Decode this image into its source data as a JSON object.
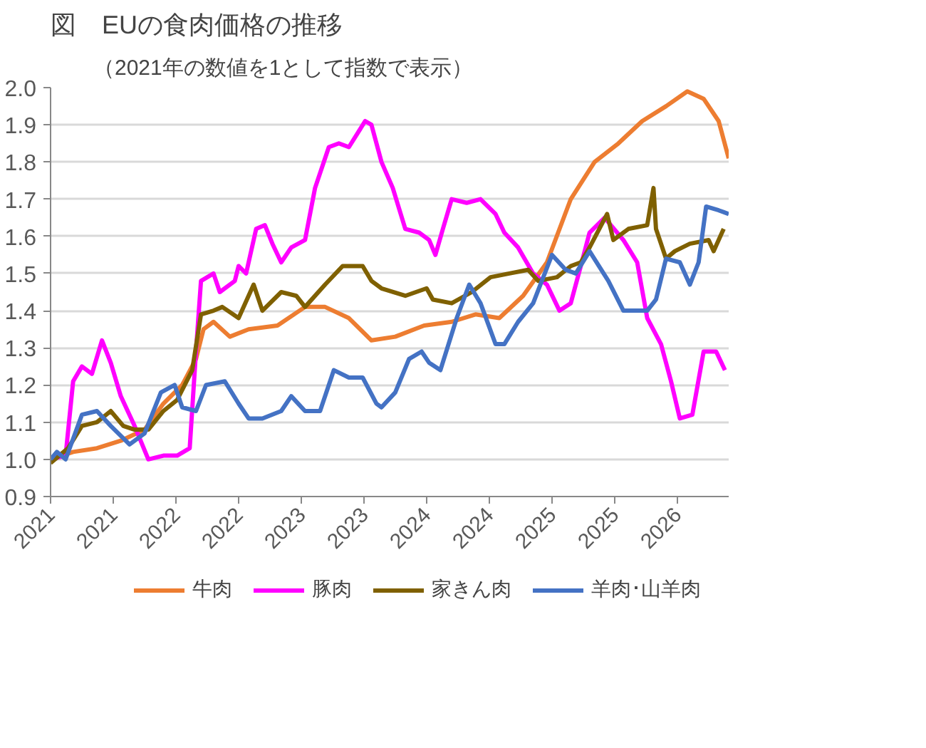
{
  "chart_data": {
    "type": "line",
    "title": "図　EUの食肉価格の推移",
    "subtitle": "（2021年の数値を1として指数で表示）",
    "xlim": [
      2021,
      2026.41
    ],
    "ylim": [
      0.9,
      2.0
    ],
    "xticks": [
      {
        "value": 2021,
        "label": "2021"
      },
      {
        "value": 2021.5,
        "label": "2021"
      },
      {
        "value": 2022,
        "label": "2022"
      },
      {
        "value": 2022.5,
        "label": "2022"
      },
      {
        "value": 2023,
        "label": "2023"
      },
      {
        "value": 2023.5,
        "label": "2023"
      },
      {
        "value": 2024,
        "label": "2024"
      },
      {
        "value": 2024.5,
        "label": "2024"
      },
      {
        "value": 2025,
        "label": "2025"
      },
      {
        "value": 2025.5,
        "label": "2025"
      },
      {
        "value": 2026,
        "label": "2026"
      }
    ],
    "yticks": [
      {
        "value": 0.9,
        "label": "0.9"
      },
      {
        "value": 1.0,
        "label": "1.0"
      },
      {
        "value": 1.1,
        "label": "1.1"
      },
      {
        "value": 1.2,
        "label": "1.2"
      },
      {
        "value": 1.3,
        "label": "1.3"
      },
      {
        "value": 1.4,
        "label": "1.4"
      },
      {
        "value": 1.5,
        "label": "1.5"
      },
      {
        "value": 1.6,
        "label": "1.6"
      },
      {
        "value": 1.7,
        "label": "1.7"
      },
      {
        "value": 1.8,
        "label": "1.8"
      },
      {
        "value": 1.9,
        "label": "1.9"
      },
      {
        "value": 2.0,
        "label": "2.0"
      }
    ],
    "grid": "y",
    "legend": "bottom",
    "series": [
      {
        "name": "牛肉",
        "color": "#ed7d31",
        "x": [
          2021.0,
          2021.18,
          2021.37,
          2021.56,
          2021.75,
          2021.9,
          2022.05,
          2022.16,
          2022.22,
          2022.3,
          2022.43,
          2022.58,
          2022.81,
          2023.03,
          2023.19,
          2023.38,
          2023.56,
          2023.75,
          2023.98,
          2024.2,
          2024.39,
          2024.58,
          2024.77,
          2024.96,
          2025.15,
          2025.34,
          2025.53,
          2025.72,
          2025.91,
          2026.08,
          2026.21,
          2026.33,
          2026.41
        ],
        "values": [
          1.0,
          1.02,
          1.03,
          1.05,
          1.08,
          1.15,
          1.2,
          1.27,
          1.35,
          1.37,
          1.33,
          1.35,
          1.36,
          1.41,
          1.41,
          1.38,
          1.32,
          1.33,
          1.36,
          1.37,
          1.39,
          1.38,
          1.44,
          1.53,
          1.7,
          1.8,
          1.85,
          1.91,
          1.95,
          1.99,
          1.97,
          1.91,
          1.81
        ]
      },
      {
        "name": "豚肉",
        "color": "#ff00ff",
        "x": [
          2021.0,
          2021.12,
          2021.18,
          2021.25,
          2021.33,
          2021.41,
          2021.48,
          2021.56,
          2021.67,
          2021.78,
          2021.9,
          2022.01,
          2022.11,
          2022.16,
          2022.2,
          2022.3,
          2022.35,
          2022.47,
          2022.5,
          2022.56,
          2022.64,
          2022.71,
          2022.77,
          2022.84,
          2022.92,
          2023.03,
          2023.11,
          2023.22,
          2023.3,
          2023.38,
          2023.51,
          2023.56,
          2023.64,
          2023.73,
          2023.83,
          2023.94,
          2024.02,
          2024.07,
          2024.13,
          2024.2,
          2024.32,
          2024.43,
          2024.55,
          2024.62,
          2024.73,
          2024.85,
          2024.96,
          2025.06,
          2025.15,
          2025.23,
          2025.3,
          2025.42,
          2025.57,
          2025.68,
          2025.76,
          2025.87,
          2025.95,
          2026.02,
          2026.12,
          2026.21,
          2026.31,
          2026.38
        ],
        "values": [
          1.0,
          1.01,
          1.21,
          1.25,
          1.23,
          1.32,
          1.26,
          1.17,
          1.09,
          1.0,
          1.01,
          1.01,
          1.03,
          1.29,
          1.48,
          1.5,
          1.45,
          1.48,
          1.52,
          1.5,
          1.62,
          1.63,
          1.58,
          1.53,
          1.57,
          1.59,
          1.73,
          1.84,
          1.85,
          1.84,
          1.91,
          1.9,
          1.8,
          1.73,
          1.62,
          1.61,
          1.59,
          1.55,
          1.62,
          1.7,
          1.69,
          1.7,
          1.66,
          1.61,
          1.57,
          1.5,
          1.47,
          1.4,
          1.42,
          1.52,
          1.61,
          1.65,
          1.59,
          1.53,
          1.38,
          1.31,
          1.21,
          1.11,
          1.12,
          1.29,
          1.29,
          1.24
        ]
      },
      {
        "name": "家きん肉",
        "color": "#7f6000",
        "x": [
          2021.0,
          2021.14,
          2021.25,
          2021.37,
          2021.48,
          2021.58,
          2021.67,
          2021.78,
          2021.9,
          2022.01,
          2022.13,
          2022.2,
          2022.3,
          2022.37,
          2022.5,
          2022.62,
          2022.69,
          2022.84,
          2022.96,
          2023.03,
          2023.19,
          2023.33,
          2023.49,
          2023.56,
          2023.64,
          2023.83,
          2024.0,
          2024.05,
          2024.2,
          2024.36,
          2024.51,
          2024.66,
          2024.81,
          2024.89,
          2025.04,
          2025.15,
          2025.23,
          2025.3,
          2025.44,
          2025.49,
          2025.61,
          2025.76,
          2025.81,
          2025.83,
          2025.91,
          2025.98,
          2026.1,
          2026.25,
          2026.29,
          2026.37
        ],
        "values": [
          0.99,
          1.03,
          1.09,
          1.1,
          1.13,
          1.09,
          1.08,
          1.08,
          1.13,
          1.16,
          1.24,
          1.39,
          1.4,
          1.41,
          1.38,
          1.47,
          1.4,
          1.45,
          1.44,
          1.41,
          1.47,
          1.52,
          1.52,
          1.48,
          1.46,
          1.44,
          1.46,
          1.43,
          1.42,
          1.45,
          1.49,
          1.5,
          1.51,
          1.48,
          1.49,
          1.52,
          1.53,
          1.57,
          1.66,
          1.59,
          1.62,
          1.63,
          1.73,
          1.62,
          1.54,
          1.56,
          1.58,
          1.59,
          1.56,
          1.62
        ]
      },
      {
        "name": "羊肉･山羊肉",
        "color": "#4472c4",
        "x": [
          2021.0,
          2021.05,
          2021.12,
          2021.25,
          2021.37,
          2021.48,
          2021.63,
          2021.75,
          2021.88,
          2021.99,
          2022.05,
          2022.16,
          2022.24,
          2022.39,
          2022.5,
          2022.58,
          2022.69,
          2022.84,
          2022.92,
          2023.03,
          2023.15,
          2023.26,
          2023.38,
          2023.49,
          2023.6,
          2023.64,
          2023.75,
          2023.86,
          2023.96,
          2024.02,
          2024.11,
          2024.24,
          2024.34,
          2024.43,
          2024.55,
          2024.62,
          2024.73,
          2024.85,
          2025.0,
          2025.11,
          2025.19,
          2025.3,
          2025.45,
          2025.57,
          2025.68,
          2025.76,
          2025.83,
          2025.91,
          2026.02,
          2026.1,
          2026.17,
          2026.23,
          2026.33,
          2026.41
        ],
        "values": [
          1.0,
          1.02,
          1.0,
          1.12,
          1.13,
          1.09,
          1.04,
          1.07,
          1.18,
          1.2,
          1.14,
          1.13,
          1.2,
          1.21,
          1.15,
          1.11,
          1.11,
          1.13,
          1.17,
          1.13,
          1.13,
          1.24,
          1.22,
          1.22,
          1.15,
          1.14,
          1.18,
          1.27,
          1.29,
          1.26,
          1.24,
          1.38,
          1.47,
          1.42,
          1.31,
          1.31,
          1.37,
          1.42,
          1.55,
          1.51,
          1.5,
          1.56,
          1.48,
          1.4,
          1.4,
          1.4,
          1.43,
          1.54,
          1.53,
          1.47,
          1.53,
          1.68,
          1.67,
          1.66
        ]
      }
    ]
  }
}
